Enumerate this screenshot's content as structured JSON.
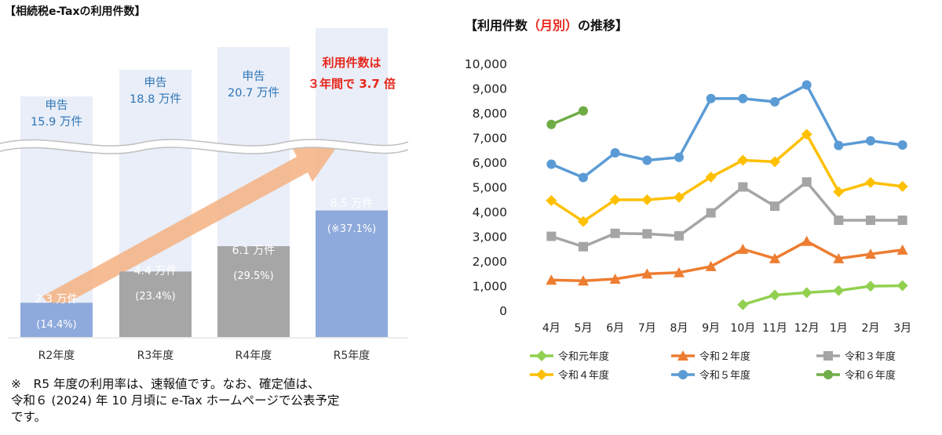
{
  "chart_data": [
    {
      "type": "bar",
      "title": "【相続税e-Taxの利用件数】",
      "categories": [
        "R2年度",
        "R3年度",
        "R4年度",
        "R5年度"
      ],
      "values": [
        2.3,
        4.4,
        6.1,
        8.5
      ],
      "value_labels": [
        "2.3 万件",
        "4.4 万件",
        "6.1 万件",
        "8.5 万件"
      ],
      "rate_labels": [
        "(14.4%)",
        "(23.4%)",
        "(29.5%)",
        "(※37.1%)"
      ],
      "filing_totals": [
        15.9,
        18.8,
        20.7,
        null
      ],
      "filing_label": "申告",
      "filing_value_labels": [
        "15.9 万件",
        "18.8 万件",
        "20.7 万件"
      ],
      "annotation": [
        "利用件数は",
        "３年間で 3.7 倍"
      ],
      "bar_colors": [
        "#8EA9DB",
        "#A6A6A6",
        "#A6A6A6",
        "#8EA9DB"
      ],
      "background_color": "#E9EEF8",
      "annotation_color": "#E8261C",
      "arrow_color": "#F4B183"
    },
    {
      "type": "line",
      "title_parts": [
        "【利用件数",
        "（月別）",
        "の推移】"
      ],
      "title_colors": [
        "#111111",
        "#E8261C",
        "#111111"
      ],
      "categories": [
        "4月",
        "5月",
        "6月",
        "7月",
        "8月",
        "9月",
        "10月",
        "11月",
        "12月",
        "1月",
        "2月",
        "3月"
      ],
      "ylim": [
        0,
        10000
      ],
      "yticks": [
        0,
        1000,
        2000,
        3000,
        4000,
        5000,
        6000,
        7000,
        8000,
        9000,
        10000
      ],
      "ytick_labels": [
        "0",
        "1,000",
        "2,000",
        "3,000",
        "4,000",
        "5,000",
        "6,000",
        "7,000",
        "8,000",
        "9,000",
        "10,000"
      ],
      "series": [
        {
          "name": "令和元年度",
          "color": "#92D050",
          "marker": "diamond",
          "values": [
            null,
            null,
            null,
            null,
            null,
            null,
            230,
            620,
            720,
            800,
            980,
            1000
          ]
        },
        {
          "name": "令和２年度",
          "color": "#ED7D31",
          "marker": "triangle",
          "values": [
            1230,
            1200,
            1270,
            1480,
            1530,
            1780,
            2480,
            2100,
            2800,
            2100,
            2280,
            2450
          ]
        },
        {
          "name": "令和３年度",
          "color": "#A5A5A5",
          "marker": "square",
          "values": [
            3000,
            2580,
            3120,
            3100,
            3020,
            3950,
            5000,
            4220,
            5200,
            3650,
            3650,
            3650
          ]
        },
        {
          "name": "令和４年度",
          "color": "#FFC000",
          "marker": "diamond",
          "values": [
            4450,
            3600,
            4480,
            4480,
            4580,
            5400,
            6080,
            6020,
            7130,
            4800,
            5180,
            5020
          ]
        },
        {
          "name": "令和５年度",
          "color": "#5B9BD5",
          "marker": "circle",
          "values": [
            5920,
            5380,
            6380,
            6080,
            6200,
            8580,
            8580,
            8450,
            9130,
            6680,
            6870,
            6700
          ]
        },
        {
          "name": "令和６年度",
          "color": "#70AD47",
          "marker": "circle",
          "values": [
            7530,
            8080,
            null,
            null,
            null,
            null,
            null,
            null,
            null,
            null,
            null,
            null
          ]
        }
      ]
    }
  ],
  "note": [
    "※　R5 年度の利用率は、速報値です。なお、確定値は、",
    "令和６ (2024) 年 10 月頃に e-Tax ホームページで公表予定",
    "です。"
  ]
}
